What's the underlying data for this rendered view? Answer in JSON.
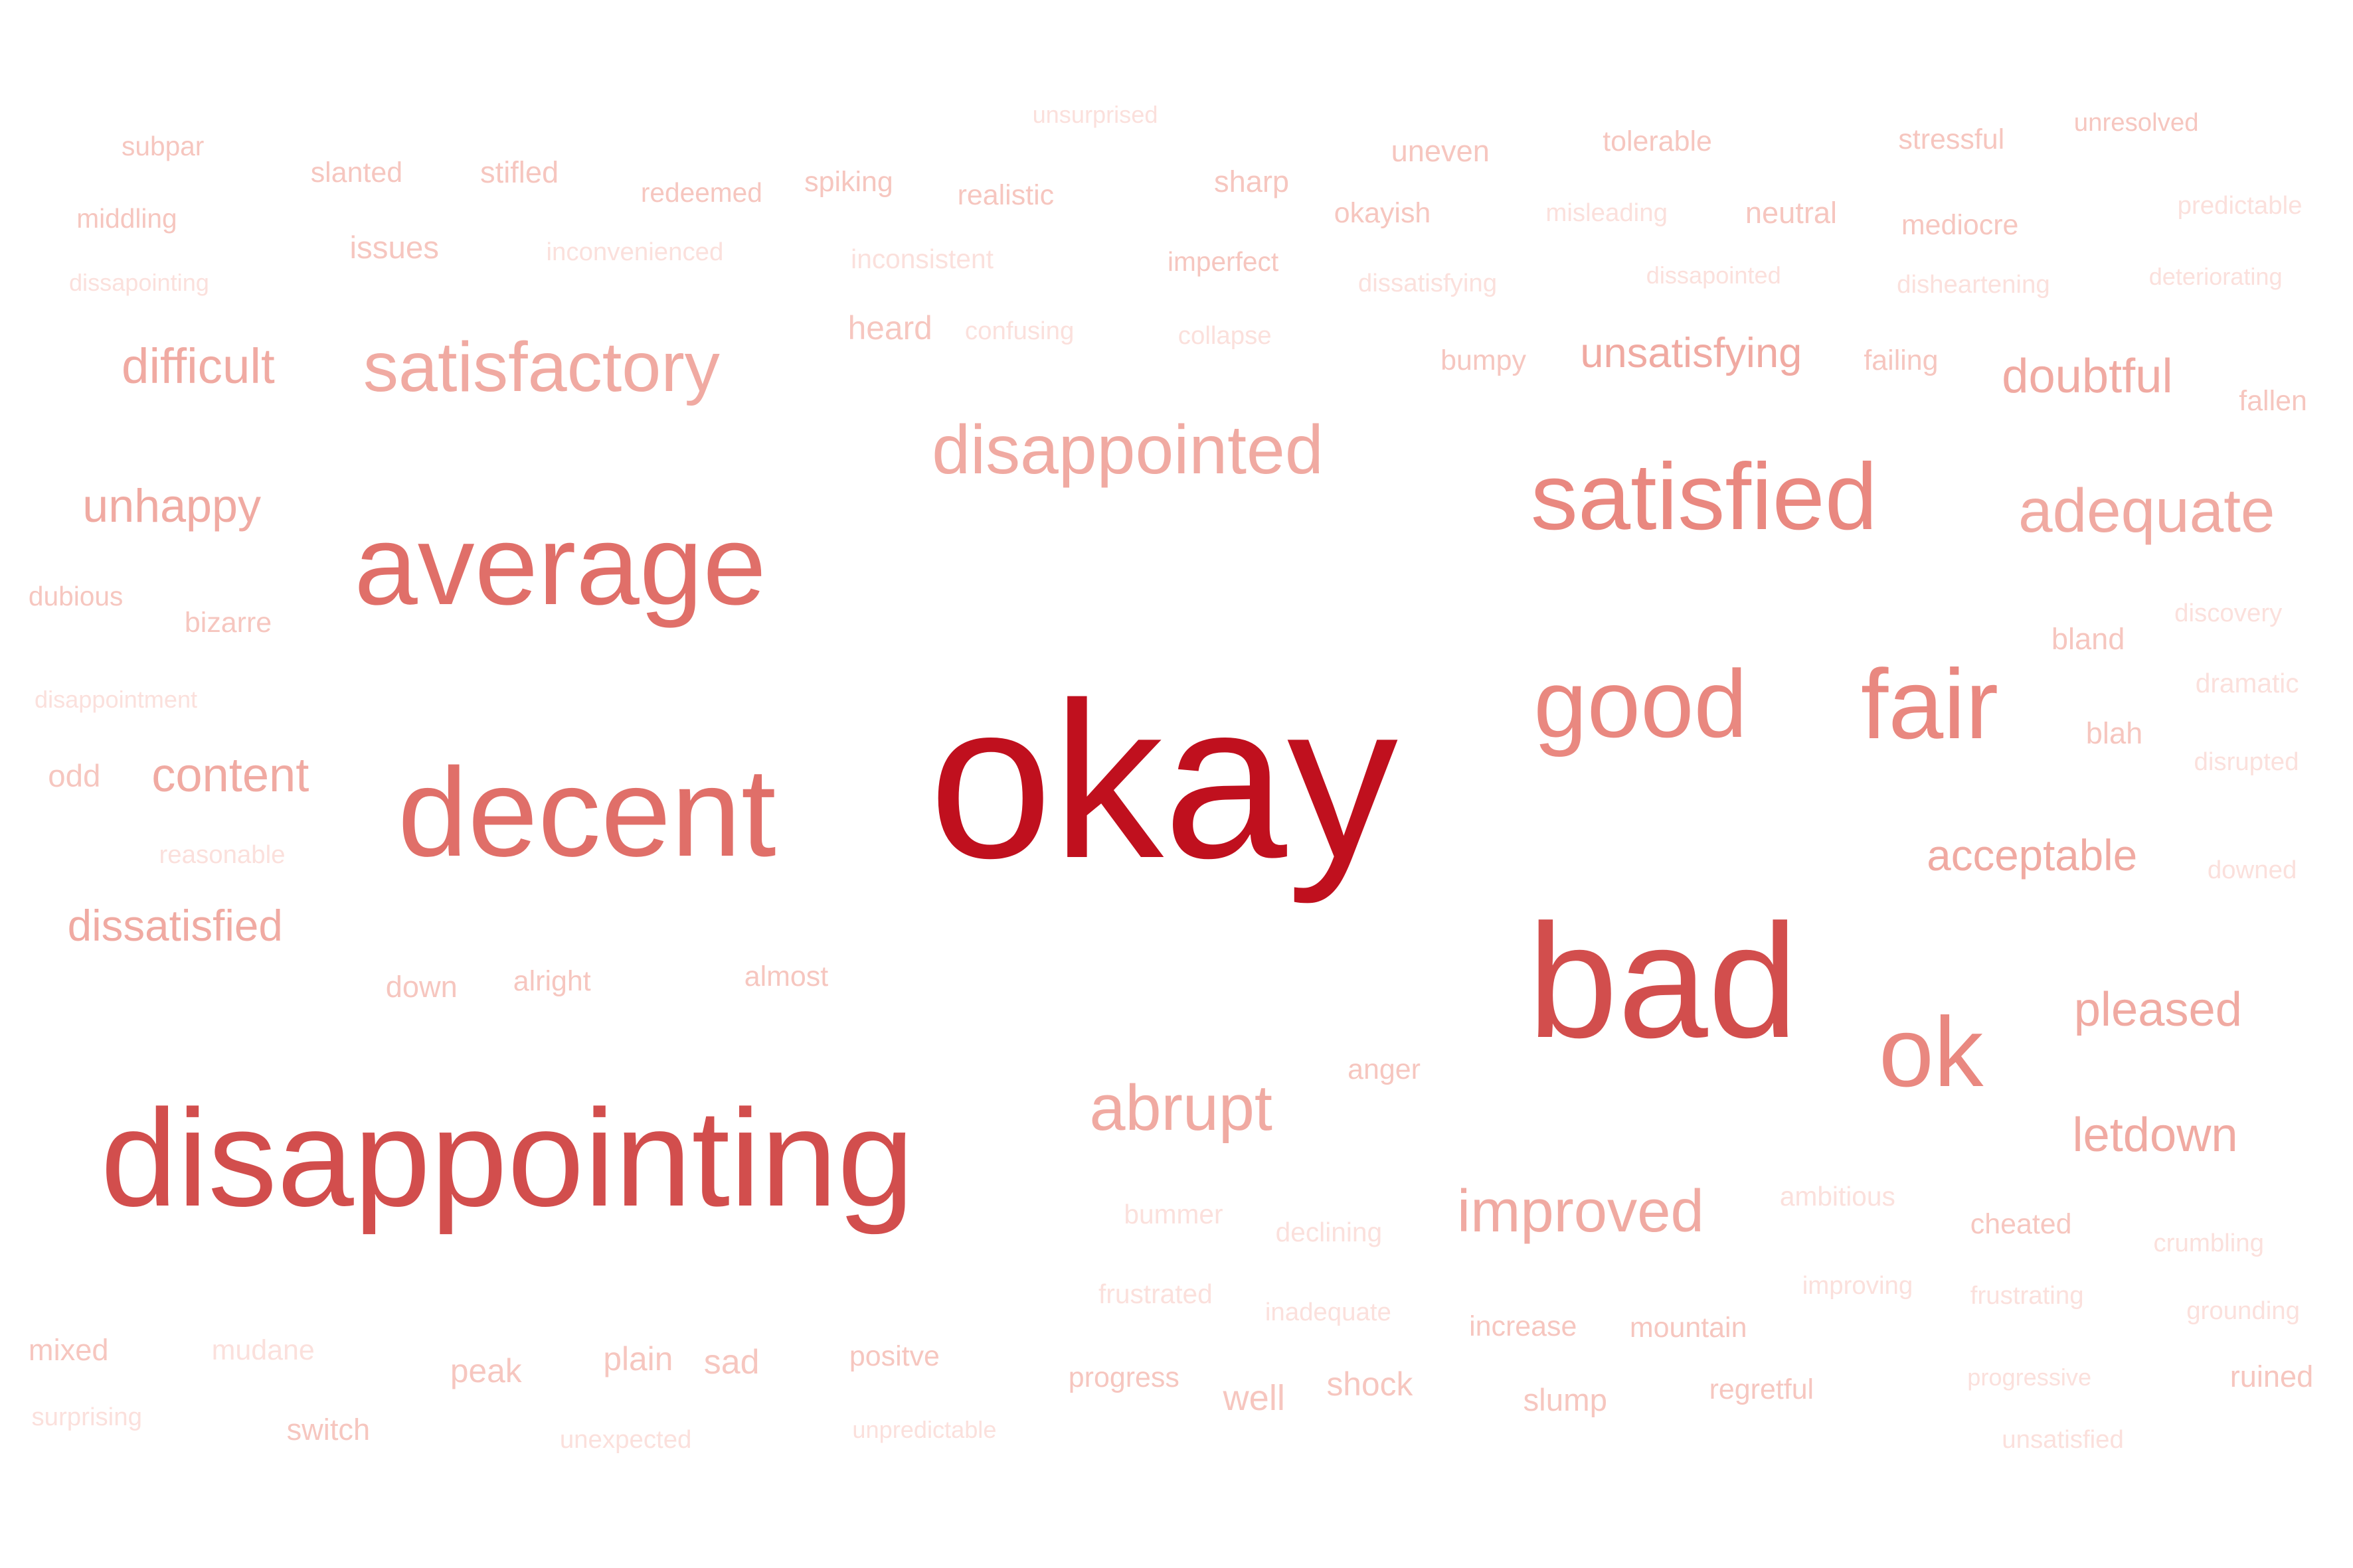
{
  "background_color": "#ffffff",
  "color_scale": [
    "#fbe0dc",
    "#f6c6bf",
    "#f0aaa2",
    "#e98880",
    "#e06f69",
    "#d24e4d",
    "#c0101e"
  ],
  "words": [
    {
      "text": "okay",
      "weight": 100
    },
    {
      "text": "disappointing",
      "weight": 60
    },
    {
      "text": "bad",
      "weight": 56
    },
    {
      "text": "average",
      "weight": 48
    },
    {
      "text": "decent",
      "weight": 48
    },
    {
      "text": "ok",
      "weight": 38
    },
    {
      "text": "satisfied",
      "weight": 36
    },
    {
      "text": "good",
      "weight": 34
    },
    {
      "text": "fair",
      "weight": 34
    },
    {
      "text": "satisfactory",
      "weight": 26
    },
    {
      "text": "disappointed",
      "weight": 25
    },
    {
      "text": "adequate",
      "weight": 24
    },
    {
      "text": "improved",
      "weight": 22
    },
    {
      "text": "abrupt",
      "weight": 21
    },
    {
      "text": "pleased",
      "weight": 18
    },
    {
      "text": "letdown",
      "weight": 18
    },
    {
      "text": "difficult",
      "weight": 18
    },
    {
      "text": "doubtful",
      "weight": 18
    },
    {
      "text": "unhappy",
      "weight": 17
    },
    {
      "text": "content",
      "weight": 17
    },
    {
      "text": "acceptable",
      "weight": 16
    },
    {
      "text": "unsatisfying",
      "weight": 16
    },
    {
      "text": "dissatisfied",
      "weight": 16
    },
    {
      "text": "subpar",
      "weight": 10
    },
    {
      "text": "slanted",
      "weight": 10
    },
    {
      "text": "stifled",
      "weight": 10
    },
    {
      "text": "redeemed",
      "weight": 10
    },
    {
      "text": "spiking",
      "weight": 10
    },
    {
      "text": "realistic",
      "weight": 10
    },
    {
      "text": "unsurprised",
      "weight": 9
    },
    {
      "text": "sharp",
      "weight": 11
    },
    {
      "text": "uneven",
      "weight": 11
    },
    {
      "text": "tolerable",
      "weight": 10
    },
    {
      "text": "stressful",
      "weight": 10
    },
    {
      "text": "unresolved",
      "weight": 10
    },
    {
      "text": "middling",
      "weight": 10
    },
    {
      "text": "issues",
      "weight": 11
    },
    {
      "text": "inconvenienced",
      "weight": 9
    },
    {
      "text": "inconsistent",
      "weight": 9
    },
    {
      "text": "imperfect",
      "weight": 10
    },
    {
      "text": "okayish",
      "weight": 10
    },
    {
      "text": "misleading",
      "weight": 9
    },
    {
      "text": "neutral",
      "weight": 11
    },
    {
      "text": "mediocre",
      "weight": 10
    },
    {
      "text": "predictable",
      "weight": 9
    },
    {
      "text": "dissapointing",
      "weight": 8
    },
    {
      "text": "heard",
      "weight": 11
    },
    {
      "text": "confusing",
      "weight": 9
    },
    {
      "text": "collapse",
      "weight": 9
    },
    {
      "text": "dissatisfying",
      "weight": 9
    },
    {
      "text": "dissapointed",
      "weight": 9
    },
    {
      "text": "disheartening",
      "weight": 9
    },
    {
      "text": "deteriorating",
      "weight": 9
    },
    {
      "text": "bumpy",
      "weight": 10
    },
    {
      "text": "failing",
      "weight": 10
    },
    {
      "text": "fallen",
      "weight": 10
    },
    {
      "text": "dubious",
      "weight": 10
    },
    {
      "text": "bizarre",
      "weight": 10
    },
    {
      "text": "discovery",
      "weight": 9
    },
    {
      "text": "bland",
      "weight": 11
    },
    {
      "text": "disappointment",
      "weight": 8
    },
    {
      "text": "dramatic",
      "weight": 9
    },
    {
      "text": "blah",
      "weight": 11
    },
    {
      "text": "odd",
      "weight": 11
    },
    {
      "text": "disrupted",
      "weight": 9
    },
    {
      "text": "reasonable",
      "weight": 9
    },
    {
      "text": "downed",
      "weight": 9
    },
    {
      "text": "down",
      "weight": 10
    },
    {
      "text": "alright",
      "weight": 10
    },
    {
      "text": "almost",
      "weight": 10
    },
    {
      "text": "anger",
      "weight": 10
    },
    {
      "text": "bummer",
      "weight": 9
    },
    {
      "text": "declining",
      "weight": 9
    },
    {
      "text": "ambitious",
      "weight": 9
    },
    {
      "text": "cheated",
      "weight": 10
    },
    {
      "text": "crumbling",
      "weight": 9
    },
    {
      "text": "frustrated",
      "weight": 9
    },
    {
      "text": "improving",
      "weight": 9
    },
    {
      "text": "inadequate",
      "weight": 9
    },
    {
      "text": "frustrating",
      "weight": 9
    },
    {
      "text": "grounding",
      "weight": 9
    },
    {
      "text": "mixed",
      "weight": 10
    },
    {
      "text": "mudane",
      "weight": 9
    },
    {
      "text": "peak",
      "weight": 10
    },
    {
      "text": "plain",
      "weight": 11
    },
    {
      "text": "sad",
      "weight": 11
    },
    {
      "text": "positve",
      "weight": 10
    },
    {
      "text": "increase",
      "weight": 10
    },
    {
      "text": "mountain",
      "weight": 10
    },
    {
      "text": "progress",
      "weight": 10
    },
    {
      "text": "well",
      "weight": 11
    },
    {
      "text": "shock",
      "weight": 11
    },
    {
      "text": "regretful",
      "weight": 10
    },
    {
      "text": "progressive",
      "weight": 9
    },
    {
      "text": "ruined",
      "weight": 10
    },
    {
      "text": "surprising",
      "weight": 9
    },
    {
      "text": "switch",
      "weight": 10
    },
    {
      "text": "unexpected",
      "weight": 9
    },
    {
      "text": "unpredictable",
      "weight": 8
    },
    {
      "text": "slump",
      "weight": 10
    },
    {
      "text": "unsatisfied",
      "weight": 9
    }
  ]
}
